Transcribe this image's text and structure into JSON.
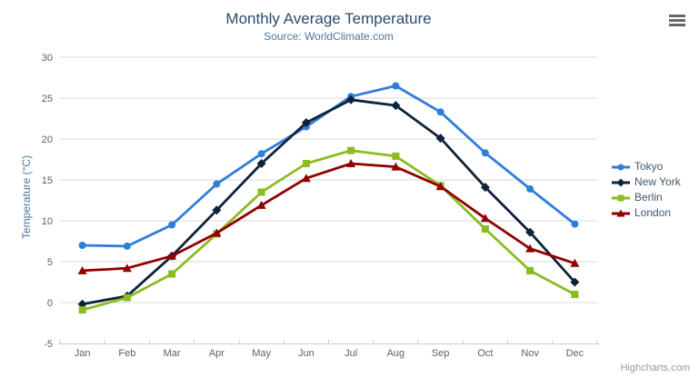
{
  "chart_data": {
    "type": "line",
    "title": "Monthly Average Temperature",
    "subtitle": "Source: WorldClimate.com",
    "xlabel": "",
    "ylabel": "Temperature (°C)",
    "categories": [
      "Jan",
      "Feb",
      "Mar",
      "Apr",
      "May",
      "Jun",
      "Jul",
      "Aug",
      "Sep",
      "Oct",
      "Nov",
      "Dec"
    ],
    "ylim": [
      -5,
      30
    ],
    "ytick_interval": 5,
    "grid": true,
    "legend_position": "right",
    "series": [
      {
        "name": "Tokyo",
        "color": "#2f7ed8",
        "marker": "circle",
        "values": [
          7.0,
          6.9,
          9.5,
          14.5,
          18.2,
          21.5,
          25.2,
          26.5,
          23.3,
          18.3,
          13.9,
          9.6
        ]
      },
      {
        "name": "New York",
        "color": "#0d233a",
        "marker": "diamond",
        "values": [
          -0.2,
          0.8,
          5.7,
          11.3,
          17.0,
          22.0,
          24.8,
          24.1,
          20.1,
          14.1,
          8.6,
          2.5
        ]
      },
      {
        "name": "Berlin",
        "color": "#8bbc21",
        "marker": "square",
        "values": [
          -0.9,
          0.6,
          3.5,
          8.4,
          13.5,
          17.0,
          18.6,
          17.9,
          14.3,
          9.0,
          3.9,
          1.0
        ]
      },
      {
        "name": "London",
        "color": "#910000",
        "marker": "triangle",
        "values": [
          3.9,
          4.2,
          5.7,
          8.5,
          11.9,
          15.2,
          17.0,
          16.6,
          14.2,
          10.3,
          6.6,
          4.8
        ]
      }
    ],
    "credits": "Highcharts.com",
    "colors": {
      "title": "#274b6d",
      "subtitle": "#4d759e",
      "axis_labels": "#606060",
      "gridline": "#d8d8d8",
      "axis_line": "#c0d0e0",
      "legend_text": "#3e576f",
      "credits_text": "#999999",
      "menu_icon": "#666666"
    }
  }
}
